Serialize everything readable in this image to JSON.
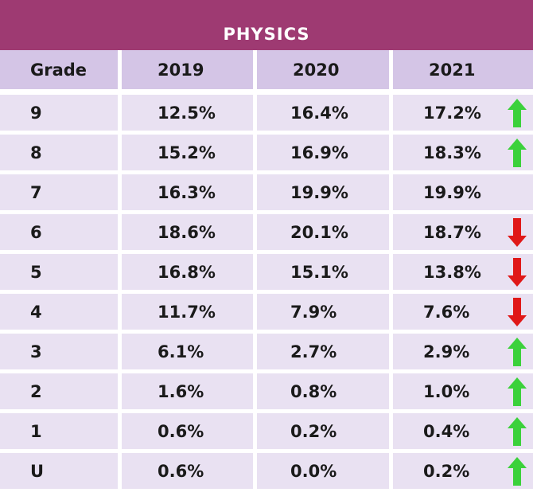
{
  "banner": {
    "title": "PHYSICS"
  },
  "colors": {
    "banner": "#9e3a72",
    "header_bg": "#d4c5e6",
    "row_bg": "#e9e1f2",
    "up": "#3bd13b",
    "down": "#e01818"
  },
  "chart_data": {
    "type": "table",
    "title": "PHYSICS",
    "columns": [
      "Grade",
      "2019",
      "2020",
      "2021"
    ],
    "rows": [
      {
        "grade": "9",
        "y2019": "12.5%",
        "y2020": "16.4%",
        "y2021": "17.2%",
        "trend": "up"
      },
      {
        "grade": "8",
        "y2019": "15.2%",
        "y2020": "16.9%",
        "y2021": "18.3%",
        "trend": "up"
      },
      {
        "grade": "7",
        "y2019": "16.3%",
        "y2020": "19.9%",
        "y2021": "19.9%",
        "trend": "none"
      },
      {
        "grade": "6",
        "y2019": "18.6%",
        "y2020": "20.1%",
        "y2021": "18.7%",
        "trend": "down"
      },
      {
        "grade": "5",
        "y2019": "16.8%",
        "y2020": "15.1%",
        "y2021": "13.8%",
        "trend": "down"
      },
      {
        "grade": "4",
        "y2019": "11.7%",
        "y2020": "7.9%",
        "y2021": "7.6%",
        "trend": "down"
      },
      {
        "grade": "3",
        "y2019": "6.1%",
        "y2020": "2.7%",
        "y2021": "2.9%",
        "trend": "up"
      },
      {
        "grade": "2",
        "y2019": "1.6%",
        "y2020": "0.8%",
        "y2021": "1.0%",
        "trend": "up"
      },
      {
        "grade": "1",
        "y2019": "0.6%",
        "y2020": "0.2%",
        "y2021": "0.4%",
        "trend": "up"
      },
      {
        "grade": "U",
        "y2019": "0.6%",
        "y2020": "0.0%",
        "y2021": "0.2%",
        "trend": "up"
      }
    ]
  }
}
